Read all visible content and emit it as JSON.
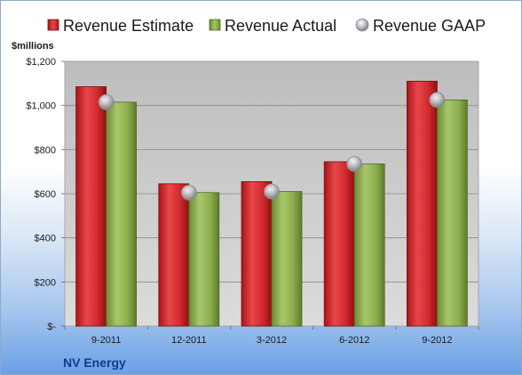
{
  "chart_data": {
    "type": "bar",
    "title": "",
    "unit_label": "$millions",
    "company": "NV Energy",
    "categories": [
      "9-2011",
      "12-2011",
      "3-2012",
      "6-2012",
      "9-2012"
    ],
    "series": [
      {
        "name": "Revenue Estimate",
        "kind": "bar",
        "color": "#d9272c",
        "values": [
          1085,
          645,
          655,
          745,
          1110
        ]
      },
      {
        "name": "Revenue Actual",
        "kind": "bar",
        "color": "#8fb04e",
        "values": [
          1015,
          605,
          610,
          735,
          1025
        ]
      },
      {
        "name": "Revenue GAAP",
        "kind": "marker",
        "color": "#b9bcc4",
        "values": [
          1015,
          605,
          610,
          735,
          1025
        ]
      }
    ],
    "ylim": [
      0,
      1200
    ],
    "yticks": [
      0,
      200,
      400,
      600,
      800,
      1000,
      1200
    ],
    "ytick_labels": [
      "$-",
      "$200",
      "$400",
      "$600",
      "$800",
      "$1,000",
      "$1,200"
    ],
    "grid": true,
    "legend_position": "top",
    "plot_background": "#c8c8c8"
  }
}
